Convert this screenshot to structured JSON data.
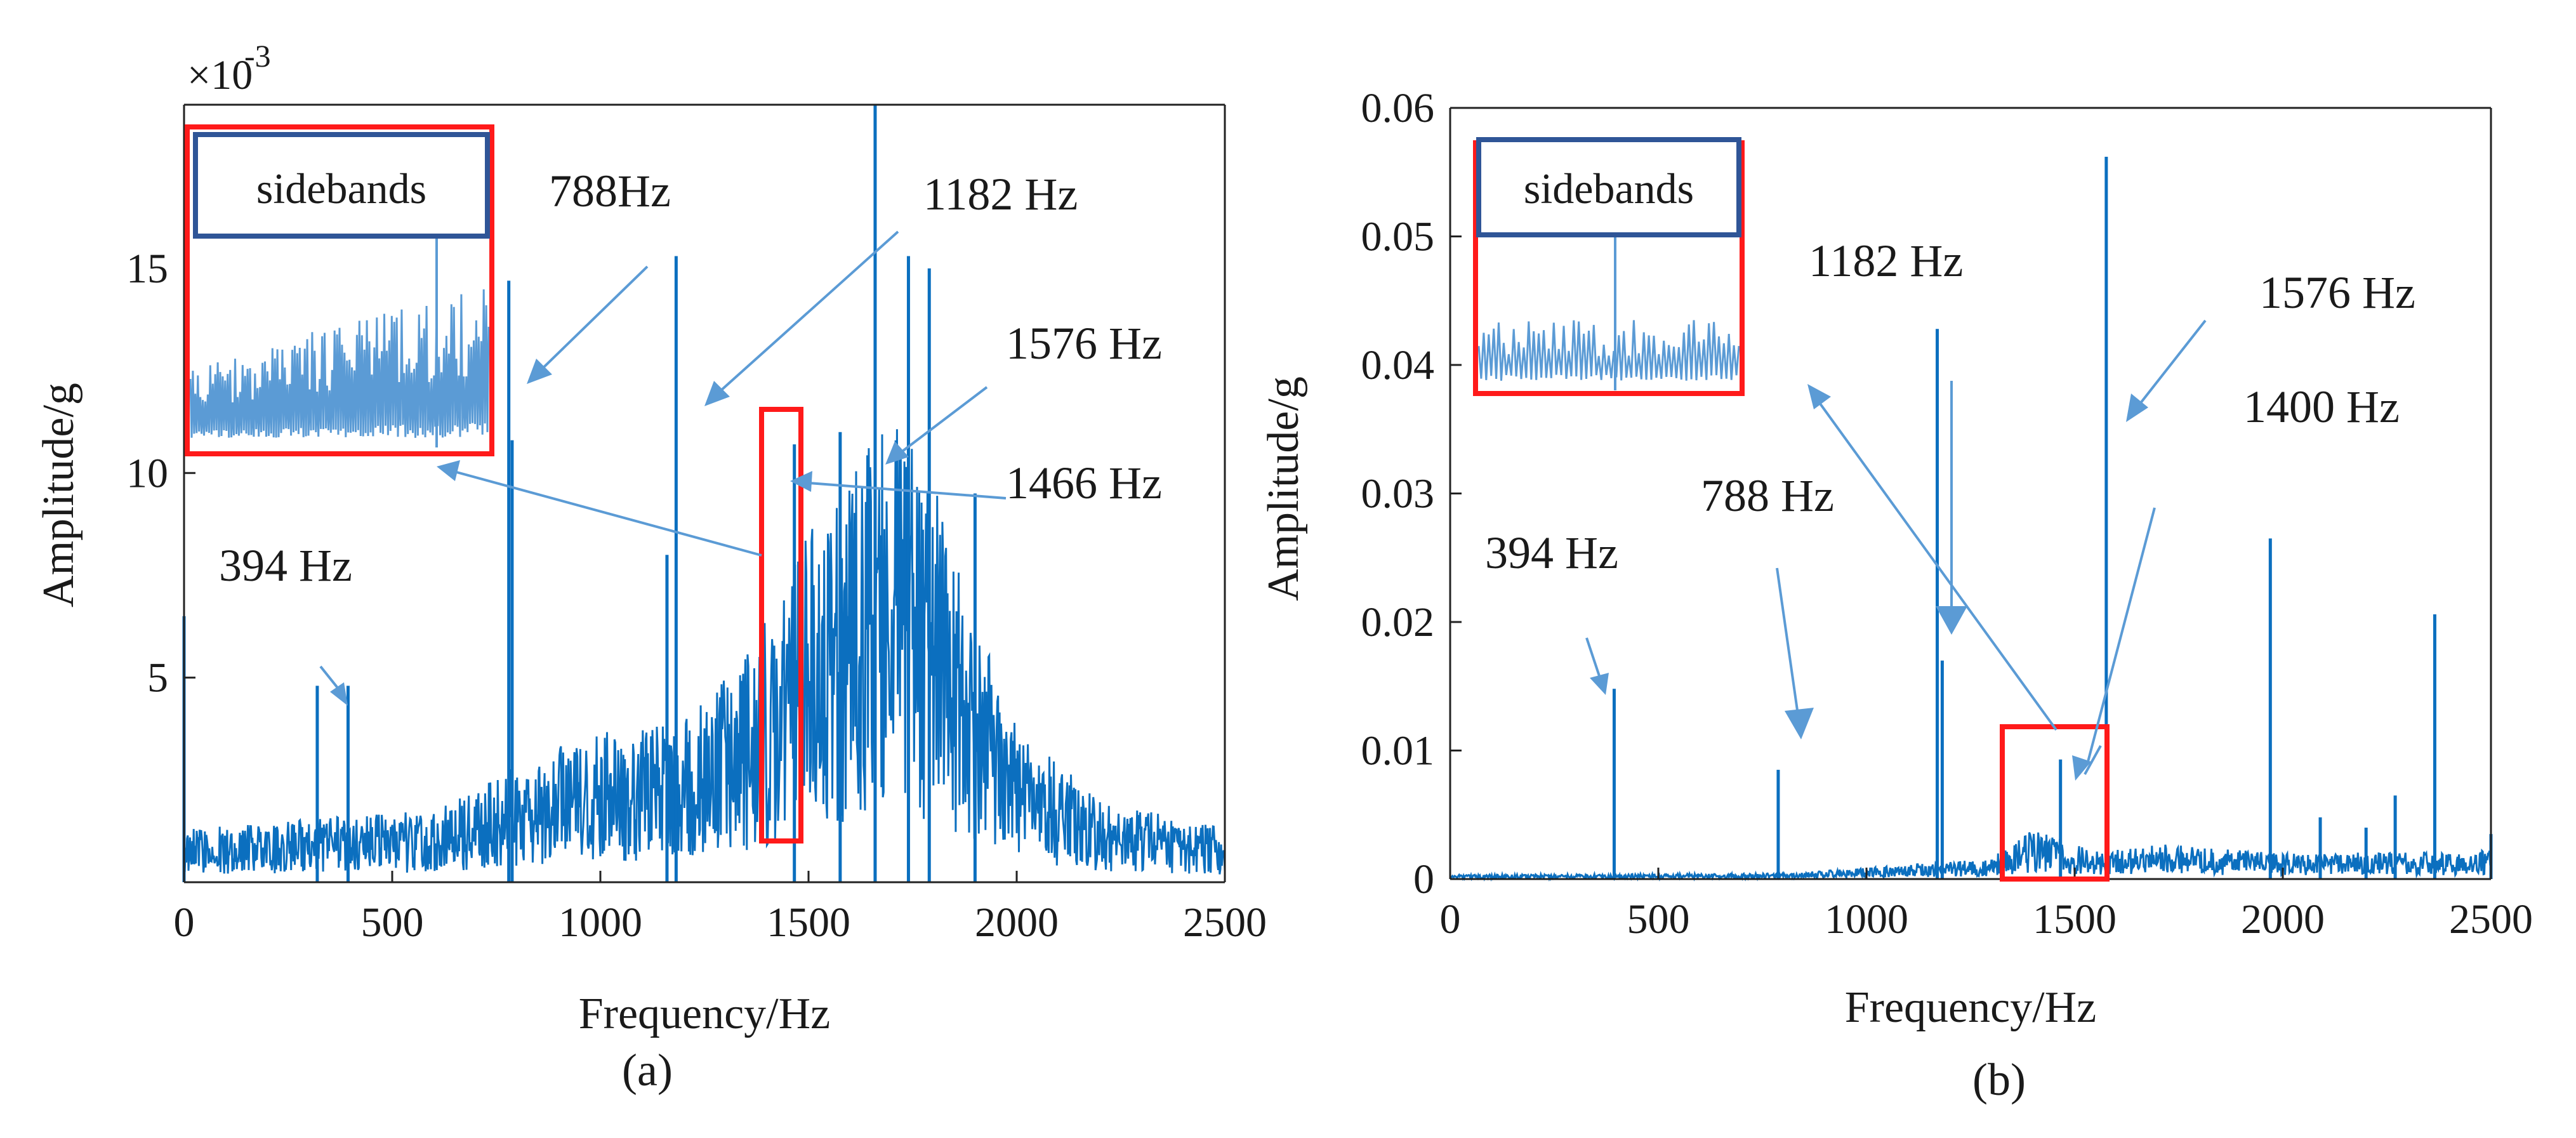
{
  "colors": {
    "series": "#0b6fbf",
    "arrow": "#5b9bd5",
    "highlight_box": "#ff1a1a",
    "label_box": "#2f5597"
  },
  "chart_data": [
    {
      "panel": "a",
      "caption": "(a)",
      "type": "line",
      "xlabel": "Frequency/Hz",
      "ylabel": "Amplitude/g",
      "y_multiplier": "×10",
      "y_multiplier_exponent": "-3",
      "xlim": [
        0,
        2500
      ],
      "ylim": [
        0,
        0.019
      ],
      "xticks": [
        0,
        500,
        1000,
        1500,
        2000,
        2500
      ],
      "xtick_labels": [
        "0",
        "500",
        "1000",
        "1500",
        "2000",
        "2500"
      ],
      "yticks": [
        0.005,
        0.01,
        0.015
      ],
      "ytick_labels": [
        "5",
        "10",
        "15"
      ],
      "noise_envelope": [
        {
          "f": 0,
          "amp": 0.0012
        },
        {
          "f": 300,
          "amp": 0.0014
        },
        {
          "f": 600,
          "amp": 0.0016
        },
        {
          "f": 800,
          "amp": 0.0026
        },
        {
          "f": 1000,
          "amp": 0.0034
        },
        {
          "f": 1200,
          "amp": 0.0036
        },
        {
          "f": 1350,
          "amp": 0.005
        },
        {
          "f": 1450,
          "amp": 0.007
        },
        {
          "f": 1550,
          "amp": 0.0085
        },
        {
          "f": 1700,
          "amp": 0.0105
        },
        {
          "f": 1800,
          "amp": 0.0095
        },
        {
          "f": 1900,
          "amp": 0.006
        },
        {
          "f": 2000,
          "amp": 0.0035
        },
        {
          "f": 2200,
          "amp": 0.0018
        },
        {
          "f": 2500,
          "amp": 0.0012
        }
      ],
      "peaks": [
        {
          "f": 0,
          "amp": 0.0065
        },
        {
          "f": 320,
          "amp": 0.0048
        },
        {
          "f": 394,
          "amp": 0.0048
        },
        {
          "f": 780,
          "amp": 0.0147
        },
        {
          "f": 788,
          "amp": 0.0108
        },
        {
          "f": 1160,
          "amp": 0.008
        },
        {
          "f": 1182,
          "amp": 0.0153
        },
        {
          "f": 1466,
          "amp": 0.0107
        },
        {
          "f": 1576,
          "amp": 0.011
        },
        {
          "f": 1660,
          "amp": 0.019
        },
        {
          "f": 1740,
          "amp": 0.0153
        },
        {
          "f": 1790,
          "amp": 0.015
        },
        {
          "f": 1900,
          "amp": 0.0095
        }
      ],
      "annotations": [
        "394 Hz",
        "788Hz",
        "1182 Hz",
        "1576 Hz",
        "1466 Hz"
      ],
      "inset_label": "sidebands"
    },
    {
      "panel": "b",
      "caption": "(b)",
      "type": "line",
      "xlabel": "Frequency/Hz",
      "ylabel": "Amplitude/g",
      "xlim": [
        0,
        2500
      ],
      "ylim": [
        0,
        0.06
      ],
      "xticks": [
        0,
        500,
        1000,
        1500,
        2000,
        2500
      ],
      "xtick_labels": [
        "0",
        "500",
        "1000",
        "1500",
        "2000",
        "2500"
      ],
      "yticks": [
        0,
        0.01,
        0.02,
        0.03,
        0.04,
        0.05,
        0.06
      ],
      "ytick_labels": [
        "0",
        "0.01",
        "0.02",
        "0.03",
        "0.04",
        "0.05",
        "0.06"
      ],
      "noise_envelope": [
        {
          "f": 0,
          "amp": 0.0003
        },
        {
          "f": 800,
          "amp": 0.0004
        },
        {
          "f": 1100,
          "amp": 0.001
        },
        {
          "f": 1300,
          "amp": 0.0015
        },
        {
          "f": 1400,
          "amp": 0.0035
        },
        {
          "f": 1550,
          "amp": 0.002
        },
        {
          "f": 1700,
          "amp": 0.0025
        },
        {
          "f": 2000,
          "amp": 0.0018
        },
        {
          "f": 2500,
          "amp": 0.002
        }
      ],
      "peaks": [
        {
          "f": 394,
          "amp": 0.0148
        },
        {
          "f": 788,
          "amp": 0.0085
        },
        {
          "f": 1182,
          "amp": 0.017
        },
        {
          "f": 1170,
          "amp": 0.0428
        },
        {
          "f": 1466,
          "amp": 0.0093
        },
        {
          "f": 1576,
          "amp": 0.0562
        },
        {
          "f": 1970,
          "amp": 0.0265
        },
        {
          "f": 2090,
          "amp": 0.0048
        },
        {
          "f": 2200,
          "amp": 0.004
        },
        {
          "f": 2270,
          "amp": 0.0065
        },
        {
          "f": 2365,
          "amp": 0.0206
        },
        {
          "f": 2500,
          "amp": 0.0035
        }
      ],
      "annotations": [
        "394 Hz",
        "788 Hz",
        "1182 Hz",
        "1576 Hz",
        "1400 Hz"
      ],
      "inset_label": "sidebands"
    }
  ]
}
